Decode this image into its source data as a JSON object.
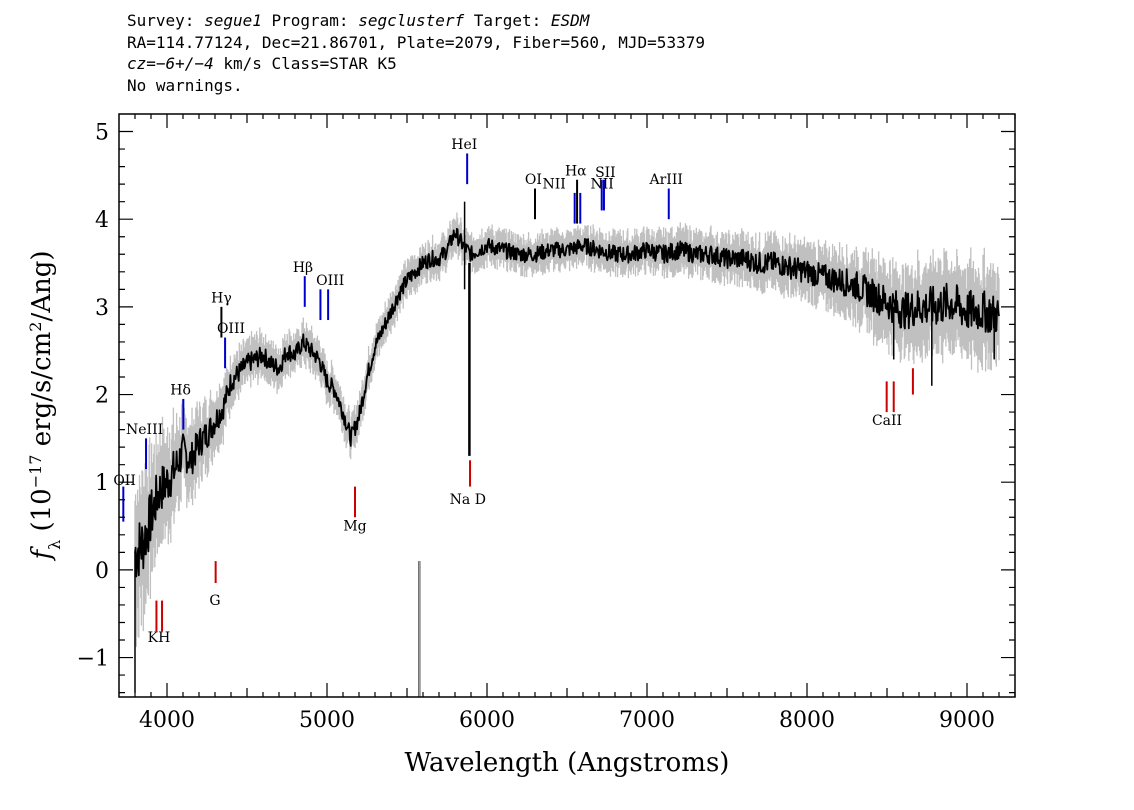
{
  "header": {
    "line1": {
      "survey_label": "Survey: ",
      "survey": "segue1",
      "program_label": " Program: ",
      "program": "segclusterf",
      "target_label": " Target: ",
      "target": "ESDM"
    },
    "line2": "RA=114.77124, Dec=21.86701, Plate=2079, Fiber=560, MJD=53379",
    "line3": {
      "cz_label": "cz",
      "cz_value": "=−6+/−4",
      "cz_units": " km/s Class=STAR K5"
    },
    "line4": "No warnings."
  },
  "chart_data": {
    "type": "line",
    "xlabel": "Wavelength (Angstroms)",
    "ylabel": "fλ (10⁻¹⁷ erg/s/cm²/Ang)",
    "xlim": [
      3700,
      9300
    ],
    "ylim": [
      -1.45,
      5.2
    ],
    "x_ticks": [
      4000,
      5000,
      6000,
      7000,
      8000,
      9000
    ],
    "y_ticks": [
      -1,
      0,
      1,
      2,
      3,
      4,
      5
    ],
    "x_tick_labels": [
      "4000",
      "5000",
      "6000",
      "7000",
      "8000",
      "9000"
    ],
    "y_tick_labels": [
      "−1",
      "0",
      "1",
      "2",
      "3",
      "4",
      "5"
    ],
    "grid": false,
    "series": [
      {
        "role": "flux",
        "color": "#000000",
        "x": [
          3800,
          3850,
          3900,
          3950,
          4000,
          4050,
          4100,
          4150,
          4200,
          4250,
          4300,
          4350,
          4400,
          4450,
          4500,
          4550,
          4600,
          4650,
          4700,
          4750,
          4800,
          4850,
          4900,
          4950,
          5000,
          5050,
          5100,
          5150,
          5200,
          5250,
          5300,
          5350,
          5400,
          5450,
          5500,
          5550,
          5600,
          5650,
          5700,
          5750,
          5800,
          5850,
          5900,
          5950,
          6000,
          6100,
          6200,
          6300,
          6400,
          6500,
          6600,
          6700,
          6800,
          6900,
          7000,
          7100,
          7200,
          7300,
          7400,
          7500,
          7600,
          7700,
          7800,
          7900,
          8000,
          8100,
          8200,
          8300,
          8400,
          8500,
          8600,
          8700,
          8800,
          8900,
          9000,
          9100,
          9200
        ],
        "y": [
          0.2,
          0.3,
          0.6,
          0.9,
          1.0,
          1.15,
          1.35,
          1.25,
          1.45,
          1.55,
          1.7,
          1.85,
          2.15,
          2.25,
          2.35,
          2.4,
          2.45,
          2.35,
          2.3,
          2.5,
          2.45,
          2.6,
          2.5,
          2.4,
          2.15,
          2.05,
          1.8,
          1.5,
          1.75,
          2.2,
          2.55,
          2.75,
          2.95,
          3.15,
          3.3,
          3.4,
          3.5,
          3.55,
          3.55,
          3.65,
          3.85,
          3.7,
          3.6,
          3.65,
          3.7,
          3.65,
          3.6,
          3.6,
          3.65,
          3.65,
          3.7,
          3.65,
          3.6,
          3.6,
          3.65,
          3.6,
          3.65,
          3.6,
          3.6,
          3.55,
          3.55,
          3.5,
          3.5,
          3.45,
          3.4,
          3.35,
          3.3,
          3.25,
          3.15,
          3.05,
          2.95,
          3.0,
          3.0,
          3.05,
          2.95,
          2.95,
          2.9
        ]
      },
      {
        "role": "flux-error-band",
        "color": "#c0c0c0",
        "halfwidth": [
          0.55,
          0.5,
          0.45,
          0.4,
          0.38,
          0.35,
          0.3,
          0.28,
          0.26,
          0.24,
          0.22,
          0.2,
          0.18,
          0.17,
          0.16,
          0.16,
          0.15,
          0.15,
          0.15,
          0.15,
          0.14,
          0.14,
          0.14,
          0.14,
          0.14,
          0.14,
          0.14,
          0.14,
          0.14,
          0.14,
          0.13,
          0.13,
          0.13,
          0.13,
          0.13,
          0.13,
          0.13,
          0.13,
          0.13,
          0.13,
          0.13,
          0.13,
          0.13,
          0.13,
          0.13,
          0.13,
          0.13,
          0.13,
          0.13,
          0.13,
          0.13,
          0.14,
          0.14,
          0.14,
          0.14,
          0.15,
          0.15,
          0.15,
          0.16,
          0.16,
          0.17,
          0.18,
          0.18,
          0.19,
          0.2,
          0.2,
          0.22,
          0.24,
          0.26,
          0.28,
          0.3,
          0.32,
          0.34,
          0.34,
          0.34,
          0.34,
          0.34
        ]
      }
    ],
    "features": [
      {
        "wl": 5577,
        "y0": -1.45,
        "y1": 0.1,
        "color": "#000000",
        "width": 2
      },
      {
        "wl": 5577,
        "y0": -1.45,
        "y1": 0.1,
        "color": "#bbbbbb",
        "width": 1
      },
      {
        "wl": 5890,
        "y0": 1.3,
        "y1": 3.5,
        "color": "#000000",
        "width": 2.5
      },
      {
        "wl": 3800,
        "y0": -1.4,
        "y1": 0.2,
        "color": "#000000",
        "width": 1.5
      },
      {
        "wl": 5860,
        "y0": 3.2,
        "y1": 4.2,
        "color": "#000000",
        "width": 1.5
      },
      {
        "wl": 8542,
        "y0": 2.4,
        "y1": 3.0,
        "color": "#000000",
        "width": 1.5
      },
      {
        "wl": 8780,
        "y0": 2.1,
        "y1": 3.0,
        "color": "#000000",
        "width": 1.5
      },
      {
        "wl": 9170,
        "y0": 2.4,
        "y1": 3.0,
        "color": "#000000",
        "width": 1.5
      }
    ],
    "emission_lines": [
      {
        "label": "OII",
        "wl": 3727,
        "y0": 0.55,
        "y1": 0.95,
        "lx": 3735,
        "ly": 0.97,
        "color": "#0000cc"
      },
      {
        "label": "NeIII",
        "wl": 3869,
        "y0": 1.15,
        "y1": 1.5,
        "lx": 3860,
        "ly": 1.55,
        "color": "#0000cc"
      },
      {
        "label": "Hδ",
        "wl": 4102,
        "y0": 1.6,
        "y1": 1.95,
        "lx": 4085,
        "ly": 2.0,
        "color": "#0000cc"
      },
      {
        "label": "Hγ",
        "wl": 4340,
        "y0": 2.65,
        "y1": 3.0,
        "lx": 4340,
        "ly": 3.05,
        "color": "#000000"
      },
      {
        "label": "OIII",
        "wl": 4363,
        "y0": 2.3,
        "y1": 2.65,
        "lx": 4400,
        "ly": 2.7,
        "color": "#0000cc"
      },
      {
        "label": "Hβ",
        "wl": 4861,
        "y0": 3.0,
        "y1": 3.35,
        "lx": 4850,
        "ly": 3.4,
        "color": "#0000cc"
      },
      {
        "label": "OIII",
        "wl": 4959,
        "y0": 2.85,
        "y1": 3.2,
        "lx": 5020,
        "ly": 3.25,
        "color": "#0000cc"
      },
      {
        "label": "OIII",
        "wl": 5007,
        "y0": 2.85,
        "y1": 3.2,
        "lx": null,
        "ly": null,
        "color": "#0000cc"
      },
      {
        "label": "HeI",
        "wl": 5876,
        "y0": 4.4,
        "y1": 4.75,
        "lx": 5858,
        "ly": 4.8,
        "color": "#0000cc"
      },
      {
        "label": "OI",
        "wl": 6300,
        "y0": 4.0,
        "y1": 4.35,
        "lx": 6290,
        "ly": 4.4,
        "color": "#000000"
      },
      {
        "label": "NII",
        "wl": 6548,
        "y0": 3.95,
        "y1": 4.3,
        "lx": 6420,
        "ly": 4.35,
        "color": "#0000cc"
      },
      {
        "label": "Hα",
        "wl": 6563,
        "y0": 3.95,
        "y1": 4.45,
        "lx": 6555,
        "ly": 4.5,
        "color": "#000000"
      },
      {
        "label": "NII",
        "wl": 6583,
        "y0": 3.95,
        "y1": 4.3,
        "lx": null,
        "ly": null,
        "color": "#0000cc"
      },
      {
        "label": "SII",
        "wl": 6717,
        "y0": 4.1,
        "y1": 4.45,
        "lx": 6740,
        "ly": 4.48,
        "color": "#0000cc"
      },
      {
        "label": "NII",
        "wl": 6731,
        "y0": 4.1,
        "y1": 4.45,
        "lx": 6720,
        "ly": 4.35,
        "color": "#0000cc"
      },
      {
        "label": "ArIII",
        "wl": 7136,
        "y0": 4.0,
        "y1": 4.35,
        "lx": 7120,
        "ly": 4.4,
        "color": "#0000cc"
      }
    ],
    "absorption_lines": [
      {
        "label": "KH",
        "wl": 3934,
        "wl2": 3969,
        "y0": -0.35,
        "y1": -0.7,
        "lx": 3950,
        "ly": -0.82,
        "color": "#cc0000"
      },
      {
        "label": "G",
        "wl": 4304,
        "y0": -0.15,
        "y1": 0.1,
        "lx": 4300,
        "ly": -0.4,
        "color": "#cc0000"
      },
      {
        "label": "Mg",
        "wl": 5175,
        "y0": 0.6,
        "y1": 0.95,
        "lx": 5175,
        "ly": 0.45,
        "color": "#cc0000"
      },
      {
        "label": "Na D",
        "wl": 5894,
        "y0": 0.95,
        "y1": 1.25,
        "lx": 5880,
        "ly": 0.75,
        "color": "#cc0000"
      },
      {
        "label": "CaII",
        "wl": 8498,
        "wl2": 8542,
        "y0": 1.8,
        "y1": 2.15,
        "lx": 8500,
        "ly": 1.65,
        "color": "#cc0000"
      },
      {
        "label": "",
        "wl": 8662,
        "y0": 2.0,
        "y1": 2.3,
        "lx": null,
        "ly": null,
        "color": "#cc0000"
      }
    ]
  }
}
